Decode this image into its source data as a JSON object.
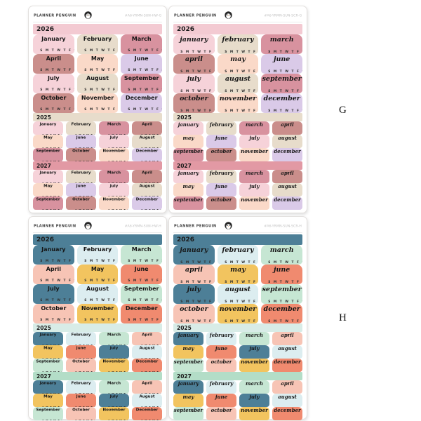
{
  "page": {
    "background": "#ffffff",
    "row_labels": [
      {
        "label": "G"
      },
      {
        "label": "H"
      }
    ]
  },
  "brand": "PLANNER PENGUIN",
  "week": "S M T W T F S",
  "months": {
    "print": [
      "January",
      "February",
      "March",
      "April",
      "May",
      "June",
      "July",
      "August",
      "September",
      "October",
      "November",
      "December"
    ],
    "script": [
      "january",
      "february",
      "march",
      "april",
      "may",
      "june",
      "july",
      "august",
      "september",
      "october",
      "november",
      "december"
    ]
  },
  "palettes": {
    "G": {
      "cycle": [
        "#f6d2d9",
        "#e7dccb",
        "#d8929f",
        "#ca8e8b",
        "#fad9c8",
        "#dacae8"
      ],
      "banners": {
        "2026": "#f3cad2",
        "2025": "#e7dccb",
        "2027": "#e299a4"
      }
    },
    "H": {
      "cycle": [
        "#4d7f97",
        "#dcedf0",
        "#c6e6d3",
        "#f7c4b5",
        "#f2c45f",
        "#f08a6f"
      ],
      "banners": {
        "2026": "#4d7f97",
        "2025": "#d8ece7",
        "2027": "#b3ddc7"
      }
    }
  },
  "sheets": [
    {
      "code": "#A6-YRMN-SUN-HW-G",
      "palette": "G",
      "font": "print",
      "sections": [
        {
          "year": "2026",
          "cols": 3
        },
        {
          "year": "2025",
          "cols": 4
        },
        {
          "year": "2027",
          "cols": 4
        }
      ]
    },
    {
      "code": "#A6-YRMN-SUN-SCR-G",
      "palette": "G",
      "font": "script",
      "sections": [
        {
          "year": "2026",
          "cols": 3
        },
        {
          "year": "2025",
          "cols": 4
        },
        {
          "year": "2027",
          "cols": 4
        }
      ]
    },
    {
      "code": "#A6-YRMN-SUN-HW-H",
      "palette": "H",
      "font": "print",
      "sections": [
        {
          "year": "2026",
          "cols": 3
        },
        {
          "year": "2025",
          "cols": 4
        },
        {
          "year": "2027",
          "cols": 4
        }
      ]
    },
    {
      "code": "#A6-YRMN-SUN-SCR-H",
      "palette": "H",
      "font": "script",
      "sections": [
        {
          "year": "2026",
          "cols": 3
        },
        {
          "year": "2025",
          "cols": 4
        },
        {
          "year": "2027",
          "cols": 4
        }
      ]
    }
  ]
}
